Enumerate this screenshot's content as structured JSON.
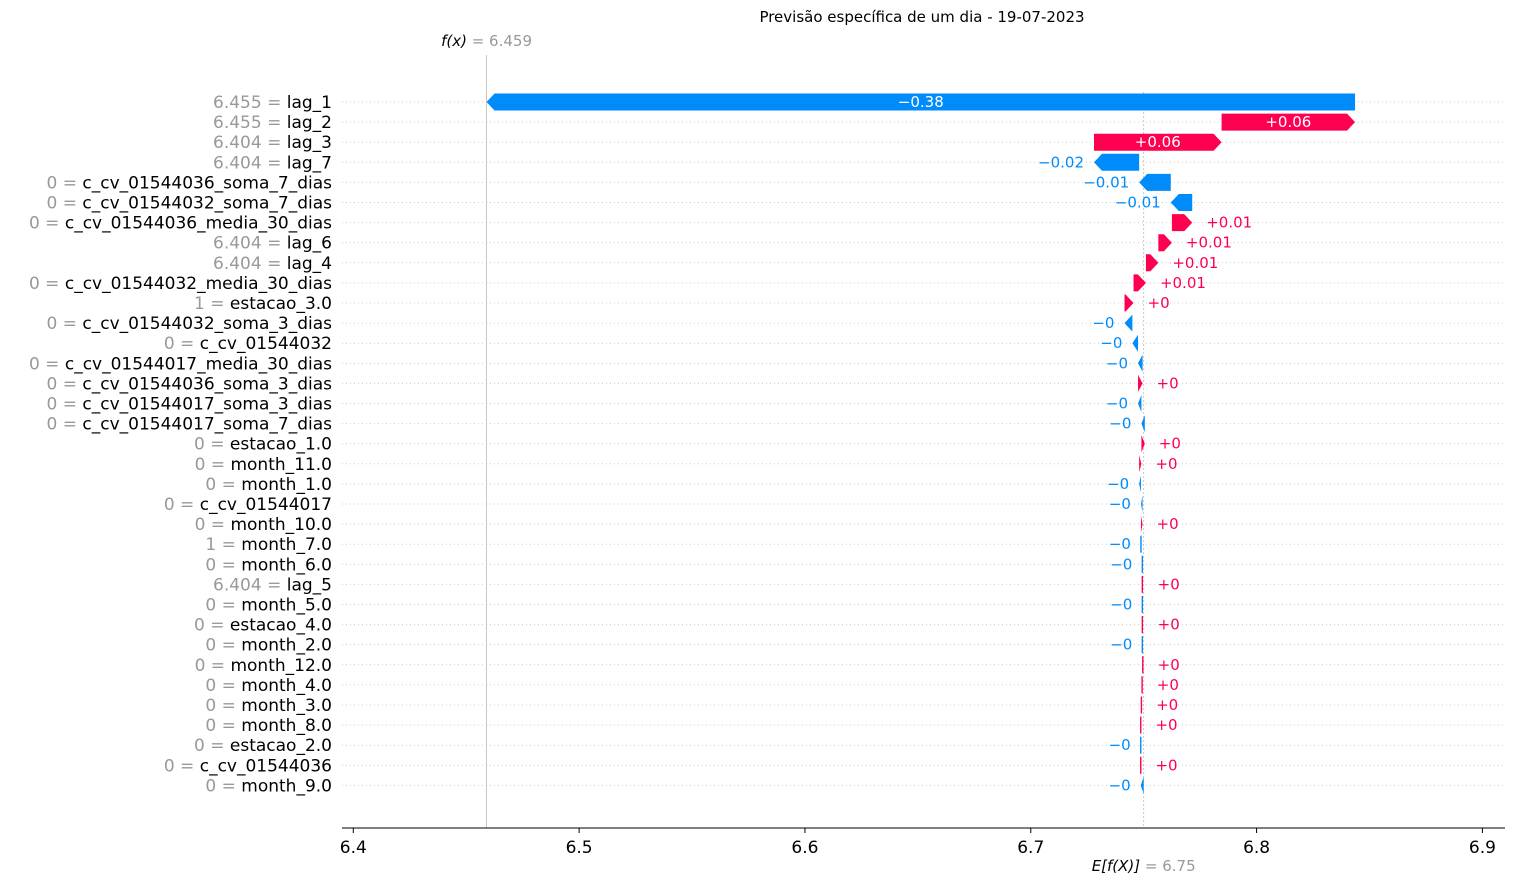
{
  "chart_data": {
    "type": "waterfall",
    "title": "Previsão específica de um dia - 19-07-2023",
    "fx_label": "f(x)",
    "fx_value": 6.459,
    "fx_text": "6.459",
    "efx_label": "E[f(X)]",
    "base_value": 6.75,
    "base_text": "6.75",
    "xlim": [
      6.395,
      6.91
    ],
    "xticks": [
      6.4,
      6.5,
      6.6,
      6.7,
      6.8,
      6.9
    ],
    "xtick_labels": [
      "6.4",
      "6.5",
      "6.6",
      "6.7",
      "6.8",
      "6.9"
    ],
    "colors": {
      "positive": "#ff0051",
      "negative": "#008bfb",
      "value_text": "#999999"
    },
    "features": [
      {
        "value": "6.455",
        "name": "lag_1",
        "start": 6.8436,
        "end": 6.459,
        "label": "−0.38"
      },
      {
        "value": "6.455",
        "name": "lag_2",
        "start": 6.7845,
        "end": 6.8436,
        "label": "+0.06"
      },
      {
        "value": "6.404",
        "name": "lag_3",
        "start": 6.728,
        "end": 6.7845,
        "label": "+0.06"
      },
      {
        "value": "6.404",
        "name": "lag_7",
        "start": 6.748,
        "end": 6.728,
        "label": "−0.02"
      },
      {
        "value": "0",
        "name": "c_cv_01544036_soma_7_dias",
        "start": 6.762,
        "end": 6.748,
        "label": "−0.01"
      },
      {
        "value": "0",
        "name": "c_cv_01544032_soma_7_dias",
        "start": 6.7715,
        "end": 6.762,
        "label": "−0.01"
      },
      {
        "value": "0",
        "name": "c_cv_01544036_media_30_dias",
        "start": 6.7625,
        "end": 6.7715,
        "label": "+0.01"
      },
      {
        "value": "6.404",
        "name": "lag_6",
        "start": 6.7565,
        "end": 6.7625,
        "label": "+0.01"
      },
      {
        "value": "6.404",
        "name": "lag_4",
        "start": 6.751,
        "end": 6.7565,
        "label": "+0.01"
      },
      {
        "value": "0",
        "name": "c_cv_01544032_media_30_dias",
        "start": 6.7455,
        "end": 6.751,
        "label": "+0.01"
      },
      {
        "value": "1",
        "name": "estacao_3.0",
        "start": 6.7415,
        "end": 6.7455,
        "label": "+0"
      },
      {
        "value": "0",
        "name": "c_cv_01544032_soma_3_dias",
        "start": 6.745,
        "end": 6.7415,
        "label": "−0"
      },
      {
        "value": "0",
        "name": "c_cv_01544032",
        "start": 6.7475,
        "end": 6.745,
        "label": "−0"
      },
      {
        "value": "0",
        "name": "c_cv_01544017_media_30_dias",
        "start": 6.7495,
        "end": 6.7475,
        "label": "−0"
      },
      {
        "value": "0",
        "name": "c_cv_01544036_soma_3_dias",
        "start": 6.7475,
        "end": 6.7495,
        "label": "+0"
      },
      {
        "value": "0",
        "name": "c_cv_01544017_soma_3_dias",
        "start": 6.749,
        "end": 6.7475,
        "label": "−0"
      },
      {
        "value": "0",
        "name": "c_cv_01544017_soma_7_dias",
        "start": 6.7505,
        "end": 6.749,
        "label": "−0"
      },
      {
        "value": "0",
        "name": "estacao_1.0",
        "start": 6.749,
        "end": 6.7505,
        "label": "+0"
      },
      {
        "value": "0",
        "name": "month_11.0",
        "start": 6.748,
        "end": 6.749,
        "label": "+0"
      },
      {
        "value": "0",
        "name": "month_1.0",
        "start": 6.7488,
        "end": 6.748,
        "label": "−0"
      },
      {
        "value": "0",
        "name": "c_cv_01544017",
        "start": 6.7495,
        "end": 6.7488,
        "label": "−0"
      },
      {
        "value": "0",
        "name": "month_10.0",
        "start": 6.7488,
        "end": 6.7495,
        "label": "+0"
      },
      {
        "value": "1",
        "name": "month_7.0",
        "start": 6.7494,
        "end": 6.7488,
        "label": "−0"
      },
      {
        "value": "0",
        "name": "month_6.0",
        "start": 6.75,
        "end": 6.7494,
        "label": "−0"
      },
      {
        "value": "6.404",
        "name": "lag_5",
        "start": 6.7494,
        "end": 6.75,
        "label": "+0"
      },
      {
        "value": "0",
        "name": "month_5.0",
        "start": 6.75,
        "end": 6.7494,
        "label": "−0"
      },
      {
        "value": "0",
        "name": "estacao_4.0",
        "start": 6.7494,
        "end": 6.75,
        "label": "+0"
      },
      {
        "value": "0",
        "name": "month_2.0",
        "start": 6.75,
        "end": 6.7494,
        "label": "−0"
      },
      {
        "value": "0",
        "name": "month_12.0",
        "start": 6.7496,
        "end": 6.75,
        "label": "+0"
      },
      {
        "value": "0",
        "name": "month_4.0",
        "start": 6.7493,
        "end": 6.7496,
        "label": "+0"
      },
      {
        "value": "0",
        "name": "month_3.0",
        "start": 6.749,
        "end": 6.7493,
        "label": "+0"
      },
      {
        "value": "0",
        "name": "month_8.0",
        "start": 6.7487,
        "end": 6.749,
        "label": "+0"
      },
      {
        "value": "0",
        "name": "estacao_2.0",
        "start": 6.749,
        "end": 6.7487,
        "label": "−0"
      },
      {
        "value": "0",
        "name": "c_cv_01544036",
        "start": 6.7487,
        "end": 6.749,
        "label": "+0"
      },
      {
        "value": "0",
        "name": "month_9.0",
        "start": 6.75,
        "end": 6.7487,
        "label": "−0"
      }
    ]
  }
}
